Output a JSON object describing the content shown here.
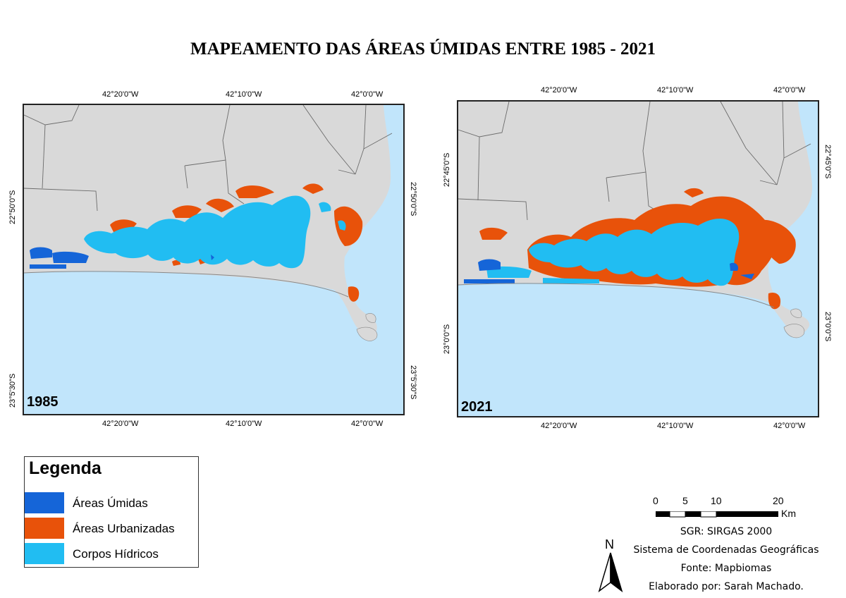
{
  "title": "MAPEAMENTO DAS ÁREAS ÚMIDAS ENTRE 1985 - 2021",
  "colors": {
    "ocean": "#c1e5fb",
    "land": "#d9d9d9",
    "wetland": "#1565d8",
    "urban": "#e8520a",
    "water": "#21bdf2",
    "boundary": "#6b6b6b"
  },
  "maps": [
    {
      "year": "1985",
      "top_ticks": [
        "42°20'0\"W",
        "42°10'0\"W",
        "42°0'0\"W"
      ],
      "bottom_ticks": [
        "42°20'0\"W",
        "42°10'0\"W",
        "42°0'0\"W"
      ],
      "left_ticks": [
        "22°50'0\"S",
        "23°5'30\"S"
      ],
      "right_ticks": [
        "22°50'0\"S",
        "23°5'30\"S"
      ]
    },
    {
      "year": "2021",
      "top_ticks": [
        "42°20'0\"W",
        "42°10'0\"W",
        "42°0'0\"W"
      ],
      "bottom_ticks": [
        "42°20'0\"W",
        "42°10'0\"W",
        "42°0'0\"W"
      ],
      "left_ticks": [
        "22°45'0\"S",
        "23°0'0\"S"
      ],
      "right_ticks": [
        "22°45'0\"S",
        "23°0'0\"S"
      ]
    }
  ],
  "legend": {
    "title": "Legenda",
    "items": [
      {
        "label": "Áreas Úmidas",
        "color": "#1565d8"
      },
      {
        "label": "Áreas Urbanizadas",
        "color": "#e8520a"
      },
      {
        "label": "Corpos Hídricos",
        "color": "#21bdf2"
      }
    ]
  },
  "scale": {
    "labels": [
      "0",
      "5",
      "10",
      "20"
    ],
    "unit": "Km"
  },
  "north_label": "N",
  "info": {
    "srs": "SGR: SIRGAS 2000",
    "system": "Sistema de Coordenadas Geográficas",
    "source": "Fonte: Mapbiomas",
    "author": "Elaborado por: Sarah Machado."
  }
}
